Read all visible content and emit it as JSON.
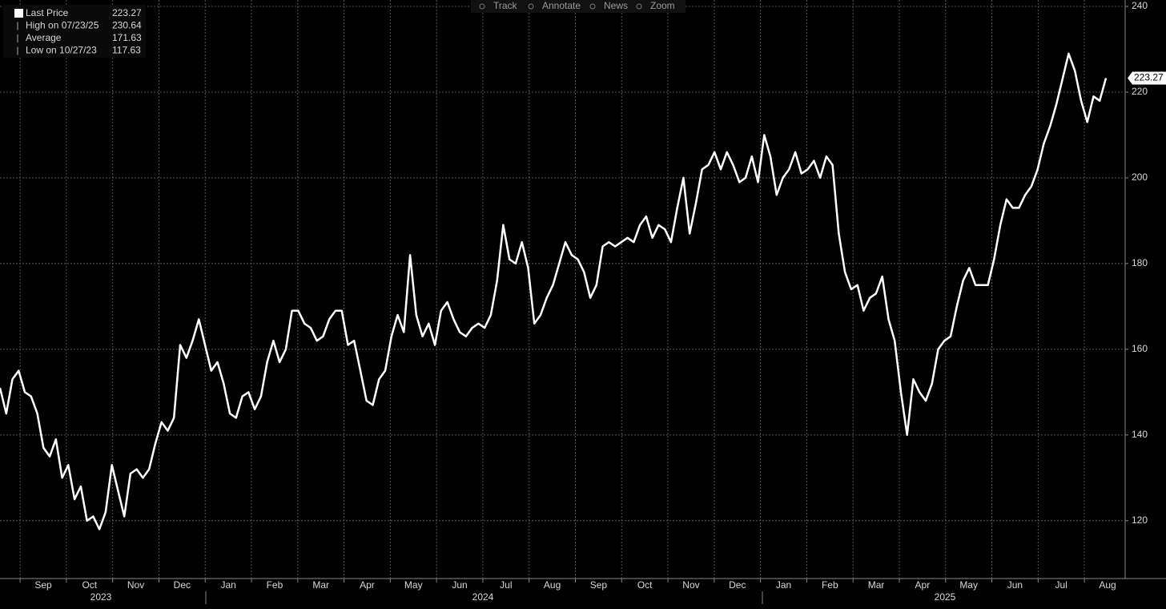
{
  "chart_data": {
    "type": "line",
    "toolbar": [
      "Track",
      "Annotate",
      "News",
      "Zoom"
    ],
    "legend": [
      {
        "label": "Last Price",
        "value": 223.27
      },
      {
        "label": "High on 07/23/25",
        "value": 230.64
      },
      {
        "label": "Average",
        "value": 171.63
      },
      {
        "label": "Low on 10/27/23",
        "value": 117.63
      }
    ],
    "last_price_label": 223.27,
    "months": [
      "Sep",
      "Oct",
      "Nov",
      "Dec",
      "Jan",
      "Feb",
      "Mar",
      "Apr",
      "May",
      "Jun",
      "Jul",
      "Aug",
      "Sep",
      "Oct",
      "Nov",
      "Dec",
      "Jan",
      "Feb",
      "Mar",
      "Apr",
      "May",
      "Jun",
      "Jul",
      "Aug"
    ],
    "years": [
      "2023",
      "2024",
      "2025"
    ],
    "ylim": [
      106.5,
      241.5
    ],
    "yticks": [
      120,
      140,
      160,
      180,
      200,
      220,
      240
    ],
    "grid": true,
    "series": [
      {
        "name": "Last Price",
        "color": "#ffffff",
        "values": [
          151,
          145,
          153,
          155,
          150,
          149,
          145,
          137,
          135,
          139,
          130,
          133,
          125,
          128,
          120,
          121,
          118,
          122,
          133,
          127,
          121,
          131,
          132,
          130,
          132,
          138,
          143,
          141,
          144,
          161,
          158,
          162,
          167,
          161,
          155,
          157,
          152,
          145,
          144,
          149,
          150,
          146,
          149,
          157,
          162,
          157,
          160,
          169,
          169,
          166,
          165,
          162,
          163,
          167,
          169,
          169,
          161,
          162,
          155,
          148,
          147,
          153,
          155,
          163,
          168,
          164,
          182,
          168,
          163,
          166,
          161,
          169,
          171,
          167,
          164,
          163,
          165,
          166,
          165,
          168,
          176,
          189,
          181,
          180,
          185,
          179,
          166,
          168,
          172,
          175,
          180,
          185,
          182,
          181,
          178,
          172,
          175,
          184,
          185,
          184,
          185,
          186,
          185,
          189,
          191,
          186,
          189,
          188,
          185,
          193,
          200,
          187,
          194,
          202,
          203,
          206,
          202,
          206,
          203,
          199,
          200,
          205,
          199,
          210,
          205,
          196,
          200,
          202,
          206,
          201,
          202,
          204,
          200,
          205,
          203,
          187,
          178,
          174,
          175,
          169,
          172,
          173,
          177,
          167,
          162,
          150,
          140,
          153,
          150,
          148,
          152,
          160,
          162,
          163,
          170,
          176,
          179,
          175,
          175,
          175,
          181,
          189,
          195,
          193,
          193,
          196,
          198,
          202,
          208,
          212,
          217,
          223,
          229,
          225,
          218,
          213,
          219,
          218,
          223.27
        ]
      }
    ]
  }
}
